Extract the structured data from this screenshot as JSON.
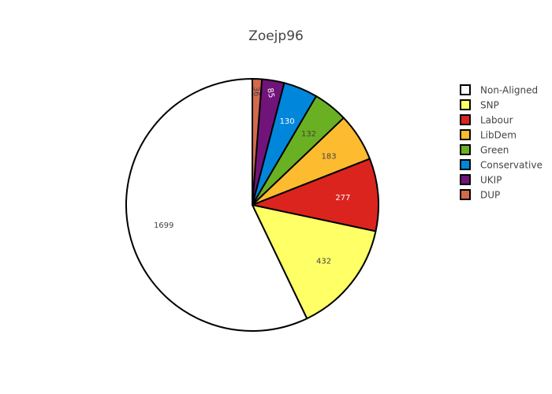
{
  "chart_data": {
    "type": "pie",
    "title": "Zoejp96",
    "labels": [
      "Non-Aligned",
      "SNP",
      "Labour",
      "LibDem",
      "Green",
      "Conservative",
      "UKIP",
      "DUP"
    ],
    "values": [
      1699,
      432,
      277,
      183,
      132,
      130,
      85,
      36
    ],
    "value_labels": [
      "1699",
      "432",
      "277",
      "183",
      "132",
      "130",
      "85",
      "36"
    ],
    "colors": [
      "#ffffff",
      "#ffff66",
      "#dc241f",
      "#fdbb30",
      "#6ab023",
      "#0087dc",
      "#70147a",
      "#d46a4c"
    ],
    "label_colors": [
      "#444444",
      "#444444",
      "#ffffff",
      "#444444",
      "#444444",
      "#ffffff",
      "#ffffff",
      "#444444"
    ],
    "legend_position": "top-right",
    "direction": "counterclockwise",
    "start": "top"
  }
}
